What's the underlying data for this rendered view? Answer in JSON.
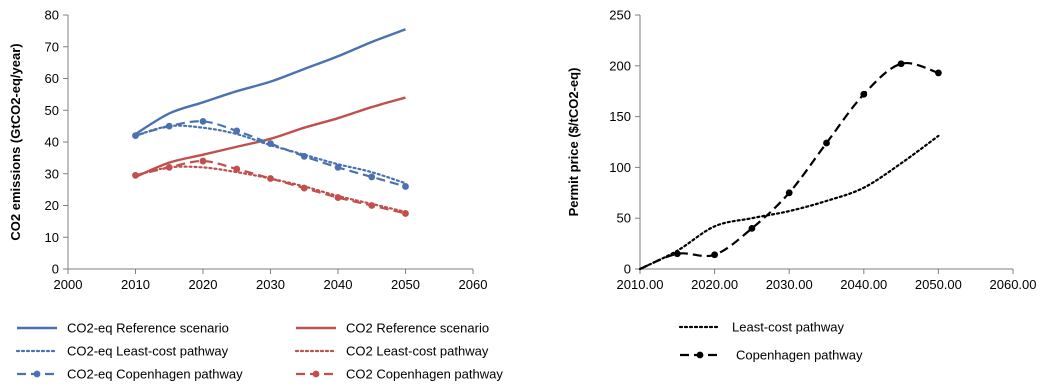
{
  "chart_data": [
    {
      "type": "line",
      "title": "",
      "xlabel": "",
      "ylabel": "CO2 emissions (GtCO2-eq/year)",
      "xlim": [
        2000,
        2060
      ],
      "ylim": [
        0,
        80
      ],
      "x_ticks": [
        "2000",
        "2010",
        "2020",
        "2030",
        "2040",
        "2050",
        "2060"
      ],
      "y_ticks": [
        "0",
        "10",
        "20",
        "30",
        "40",
        "50",
        "60",
        "70",
        "80"
      ],
      "grid": false,
      "legend_position": "bottom",
      "series": [
        {
          "name": "CO2-eq Reference scenario",
          "color": "#4a72b0",
          "style": "solid",
          "markers": false,
          "x": [
            2010,
            2015,
            2020,
            2025,
            2030,
            2035,
            2040,
            2045,
            2050
          ],
          "y": [
            42.5,
            49,
            52.5,
            56,
            59,
            63,
            67,
            71.5,
            75.5
          ]
        },
        {
          "name": "CO2 Reference scenario",
          "color": "#c0504d",
          "style": "solid",
          "markers": false,
          "x": [
            2010,
            2015,
            2020,
            2025,
            2030,
            2035,
            2040,
            2045,
            2050
          ],
          "y": [
            29,
            33.5,
            36,
            38.5,
            41,
            44.5,
            47.5,
            51,
            54
          ]
        },
        {
          "name": "CO2-eq Least-cost pathway",
          "color": "#4a72b0",
          "style": "dotted",
          "markers": false,
          "x": [
            2010,
            2015,
            2020,
            2025,
            2030,
            2035,
            2040,
            2045,
            2050
          ],
          "y": [
            42,
            45,
            44.5,
            42.5,
            39,
            36,
            33,
            30.5,
            27
          ]
        },
        {
          "name": "CO2 Least-cost pathway",
          "color": "#c0504d",
          "style": "dotted",
          "markers": false,
          "x": [
            2010,
            2015,
            2020,
            2025,
            2030,
            2035,
            2040,
            2045,
            2050
          ],
          "y": [
            29.5,
            32,
            32,
            30.5,
            28.5,
            26,
            23,
            20.5,
            18
          ]
        },
        {
          "name": "CO2-eq Copenhagen pathway",
          "color": "#4a72b0",
          "style": "dashed",
          "markers": true,
          "x": [
            2010,
            2015,
            2020,
            2025,
            2030,
            2035,
            2040,
            2045,
            2050
          ],
          "y": [
            42,
            45,
            46.5,
            43.5,
            39.5,
            35.5,
            32,
            29,
            26
          ]
        },
        {
          "name": "CO2 Copenhagen pathway",
          "color": "#c0504d",
          "style": "dashed",
          "markers": true,
          "x": [
            2010,
            2015,
            2020,
            2025,
            2030,
            2035,
            2040,
            2045,
            2050
          ],
          "y": [
            29.5,
            32,
            34,
            31.5,
            28.5,
            25.5,
            22.5,
            20,
            17.5
          ]
        }
      ]
    },
    {
      "type": "line",
      "title": "",
      "xlabel": "",
      "ylabel": "Permit price ($/tCO2-eq)",
      "xlim": [
        2010,
        2060
      ],
      "ylim": [
        0,
        250
      ],
      "x_ticks": [
        "2010.00",
        "2020.00",
        "2030.00",
        "2040.00",
        "2050.00",
        "2060.00"
      ],
      "y_ticks": [
        "0",
        "50",
        "100",
        "150",
        "200",
        "250"
      ],
      "grid": false,
      "legend_position": "bottom",
      "series": [
        {
          "name": "Least-cost pathway",
          "color": "#000000",
          "style": "dotted",
          "markers": false,
          "x": [
            2010,
            2015,
            2020,
            2025,
            2030,
            2035,
            2040,
            2045,
            2050
          ],
          "y": [
            0,
            18,
            42,
            50,
            57,
            67,
            80,
            104,
            131
          ]
        },
        {
          "name": "Copenhagen pathway",
          "color": "#000000",
          "style": "dashed",
          "markers": true,
          "x": [
            2010,
            2015,
            2020,
            2025,
            2030,
            2035,
            2040,
            2045,
            2050
          ],
          "y": [
            0,
            15,
            14,
            40,
            75,
            124,
            172,
            202,
            193
          ]
        }
      ]
    }
  ]
}
